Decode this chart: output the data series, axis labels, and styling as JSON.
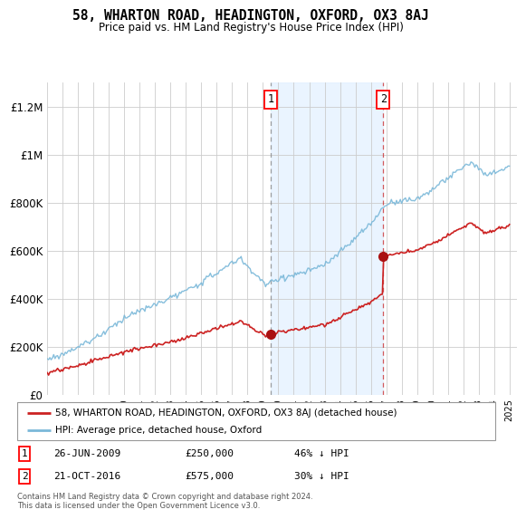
{
  "title": "58, WHARTON ROAD, HEADINGTON, OXFORD, OX3 8AJ",
  "subtitle": "Price paid vs. HM Land Registry's House Price Index (HPI)",
  "hpi_color": "#7ab8d9",
  "price_color": "#cc2222",
  "marker_color": "#aa1111",
  "shading_color": "#ddeeff",
  "sale1_date": "26-JUN-2009",
  "sale1_price": 250000,
  "sale1_label": "46% ↓ HPI",
  "sale2_date": "21-OCT-2016",
  "sale2_price": 575000,
  "sale2_label": "30% ↓ HPI",
  "sale1_year": 2009.5,
  "sale2_year": 2016.8,
  "ylim": [
    0,
    1300000
  ],
  "xlim_start": 1995,
  "xlim_end": 2025.5,
  "legend_label1": "58, WHARTON ROAD, HEADINGTON, OXFORD, OX3 8AJ (detached house)",
  "legend_label2": "HPI: Average price, detached house, Oxford",
  "footer": "Contains HM Land Registry data © Crown copyright and database right 2024.\nThis data is licensed under the Open Government Licence v3.0.",
  "yticks": [
    0,
    200000,
    400000,
    600000,
    800000,
    1000000,
    1200000
  ]
}
